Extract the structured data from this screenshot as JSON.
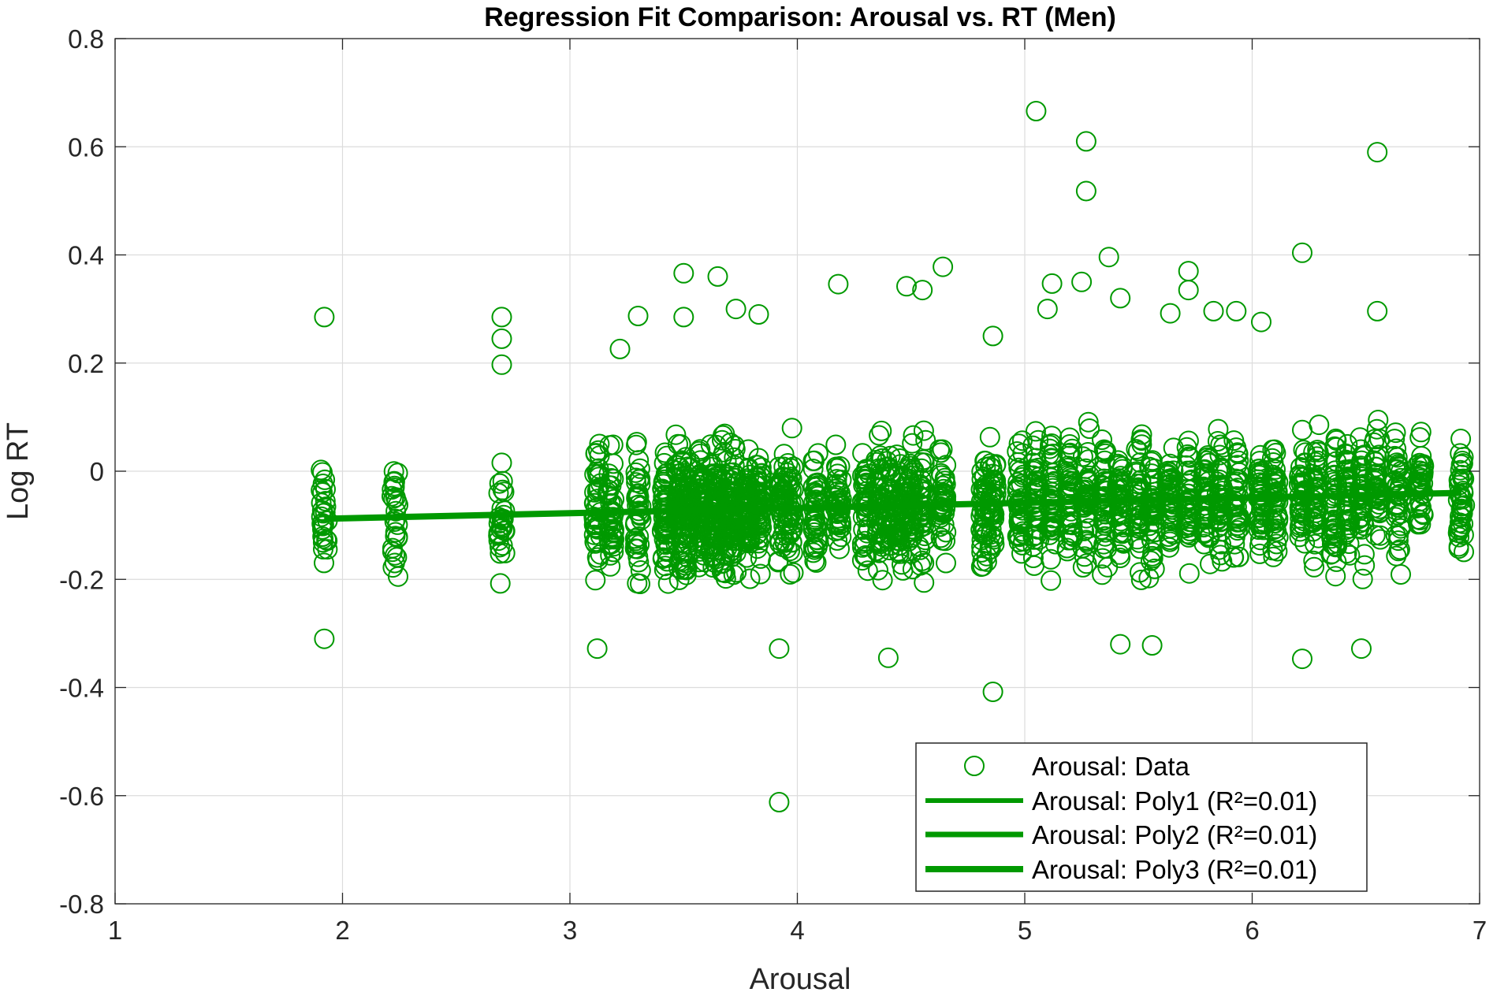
{
  "chart_data": {
    "type": "scatter",
    "title": "Regression Fit Comparison: Arousal vs. RT (Men)",
    "xlabel": "Arousal",
    "ylabel": "Log RT",
    "xlim": [
      1,
      7
    ],
    "ylim": [
      -0.8,
      0.8
    ],
    "xticks": [
      "1",
      "2",
      "3",
      "4",
      "5",
      "6",
      "7"
    ],
    "yticks": [
      "-0.8",
      "-0.6",
      "-0.4",
      "-0.2",
      "0",
      "0.2",
      "0.4",
      "0.6",
      "0.8"
    ],
    "grid": true,
    "legend_position": "bottom-right",
    "color": "#009900",
    "x_levels": [
      1.92,
      2.23,
      2.7,
      3.12,
      3.18,
      3.3,
      3.42,
      3.48,
      3.52,
      3.58,
      3.63,
      3.68,
      3.72,
      3.78,
      3.83,
      3.93,
      3.97,
      4.08,
      4.18,
      4.3,
      4.36,
      4.4,
      4.45,
      4.5,
      4.55,
      4.64,
      4.82,
      4.86,
      4.98,
      5.05,
      5.12,
      5.2,
      5.27,
      5.35,
      5.42,
      5.5,
      5.56,
      5.64,
      5.72,
      5.8,
      5.86,
      5.93,
      6.04,
      6.1,
      6.22,
      6.28,
      6.36,
      6.42,
      6.48,
      6.55,
      6.64,
      6.74,
      6.92
    ],
    "series": [
      {
        "name": "Arousal: Data",
        "kind": "scatter",
        "outliers": [
          {
            "x": 1.92,
            "y": 0.285
          },
          {
            "x": 1.92,
            "y": -0.31
          },
          {
            "x": 2.7,
            "y": 0.285
          },
          {
            "x": 2.7,
            "y": 0.245
          },
          {
            "x": 2.7,
            "y": 0.197
          },
          {
            "x": 3.12,
            "y": -0.328
          },
          {
            "x": 3.22,
            "y": 0.226
          },
          {
            "x": 3.3,
            "y": 0.287
          },
          {
            "x": 3.5,
            "y": 0.366
          },
          {
            "x": 3.5,
            "y": 0.285
          },
          {
            "x": 3.65,
            "y": 0.36
          },
          {
            "x": 3.73,
            "y": 0.3
          },
          {
            "x": 3.83,
            "y": 0.29
          },
          {
            "x": 3.92,
            "y": -0.328
          },
          {
            "x": 3.92,
            "y": -0.612
          },
          {
            "x": 4.18,
            "y": 0.346
          },
          {
            "x": 4.48,
            "y": 0.342
          },
          {
            "x": 4.55,
            "y": 0.335
          },
          {
            "x": 4.64,
            "y": 0.378
          },
          {
            "x": 4.4,
            "y": -0.345
          },
          {
            "x": 4.86,
            "y": -0.408
          },
          {
            "x": 4.86,
            "y": 0.25
          },
          {
            "x": 5.05,
            "y": 0.666
          },
          {
            "x": 5.1,
            "y": 0.3
          },
          {
            "x": 5.12,
            "y": 0.347
          },
          {
            "x": 5.27,
            "y": 0.61
          },
          {
            "x": 5.27,
            "y": 0.518
          },
          {
            "x": 5.25,
            "y": 0.35
          },
          {
            "x": 5.37,
            "y": 0.396
          },
          {
            "x": 5.42,
            "y": 0.32
          },
          {
            "x": 5.42,
            "y": -0.32
          },
          {
            "x": 5.56,
            "y": -0.322
          },
          {
            "x": 5.72,
            "y": 0.37
          },
          {
            "x": 5.72,
            "y": 0.335
          },
          {
            "x": 5.64,
            "y": 0.292
          },
          {
            "x": 5.83,
            "y": 0.296
          },
          {
            "x": 5.93,
            "y": 0.296
          },
          {
            "x": 6.04,
            "y": 0.276
          },
          {
            "x": 6.22,
            "y": 0.404
          },
          {
            "x": 6.22,
            "y": -0.347
          },
          {
            "x": 6.48,
            "y": -0.328
          },
          {
            "x": 6.55,
            "y": 0.59
          },
          {
            "x": 6.55,
            "y": 0.296
          }
        ]
      },
      {
        "name": "Arousal: Poly1 (R²=0.01)",
        "kind": "line",
        "line_width": 6,
        "x": [
          1.92,
          6.92
        ],
        "y": [
          -0.088,
          -0.04
        ]
      },
      {
        "name": "Arousal: Poly2 (R²=0.01)",
        "kind": "line",
        "line_width": 7,
        "x": [
          1.92,
          6.92
        ],
        "y": [
          -0.088,
          -0.04
        ]
      },
      {
        "name": "Arousal: Poly3 (R²=0.01)",
        "kind": "line",
        "line_width": 8,
        "x": [
          1.92,
          6.92
        ],
        "y": [
          -0.088,
          -0.04
        ]
      }
    ]
  }
}
